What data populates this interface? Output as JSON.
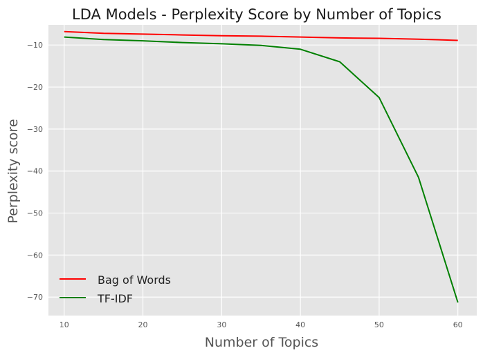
{
  "chart_data": {
    "type": "line",
    "title": "LDA Models - Perplexity Score by Number of Topics",
    "xlabel": "Number of Topics",
    "ylabel": "Perplexity score",
    "x": [
      10,
      15,
      20,
      25,
      30,
      35,
      40,
      45,
      50,
      55,
      60
    ],
    "xlim": [
      8,
      62.4
    ],
    "ylim": [
      -74.4,
      -5.2
    ],
    "xticks": [
      10,
      20,
      30,
      40,
      50,
      60
    ],
    "yticks": [
      -10,
      -20,
      -30,
      -40,
      -50,
      -60,
      -70
    ],
    "grid": true,
    "background": "#e5e5e5",
    "legend_position": "lower-left",
    "series": [
      {
        "name": "Bag of Words",
        "color": "#ff0000",
        "values": [
          -6.8,
          -7.2,
          -7.4,
          -7.6,
          -7.8,
          -7.9,
          -8.1,
          -8.3,
          -8.4,
          -8.6,
          -8.9
        ]
      },
      {
        "name": "TF-IDF",
        "color": "#008000",
        "values": [
          -8.1,
          -8.7,
          -9.0,
          -9.4,
          -9.7,
          -10.1,
          -11.0,
          -14.0,
          -22.5,
          -41.5,
          -71.3
        ]
      }
    ]
  }
}
